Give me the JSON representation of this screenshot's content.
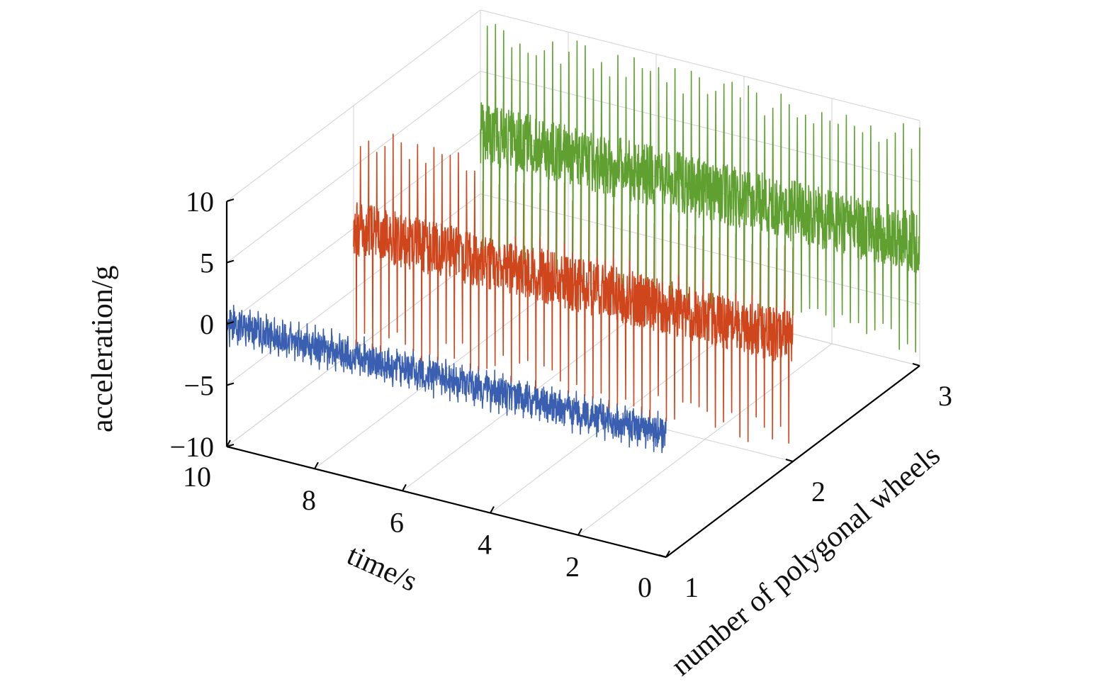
{
  "chart_data": {
    "type": "line",
    "view": "3d-waterfall",
    "title": "",
    "xlabel": "time/s",
    "ylabel": "number of polygonal wheels",
    "zlabel": "acceleration/g",
    "xlim": [
      0,
      10
    ],
    "ylim": [
      1,
      3
    ],
    "zlim": [
      -10,
      10
    ],
    "x_ticks": [
      "0",
      "2",
      "4",
      "6",
      "8",
      "10"
    ],
    "y_ticks": [
      "1",
      "2",
      "3"
    ],
    "z_ticks": [
      "10",
      "5",
      "0",
      "−5",
      "−10"
    ],
    "grid": true,
    "series": [
      {
        "wheels": 1,
        "color": "#3a5fb0",
        "mean_g": 0,
        "noise_amplitude_g": 1.2,
        "spike_max_g": 1.8,
        "spike_min_g": -1.8
      },
      {
        "wheels": 2,
        "color": "#d0461c",
        "mean_g": 0,
        "noise_amplitude_g": 2.2,
        "spike_max_g": 8.5,
        "spike_min_g": -9.5
      },
      {
        "wheels": 3,
        "color": "#5fa030",
        "mean_g": 0,
        "noise_amplitude_g": 2.5,
        "spike_max_g": 9.5,
        "spike_min_g": -9.5
      }
    ]
  }
}
